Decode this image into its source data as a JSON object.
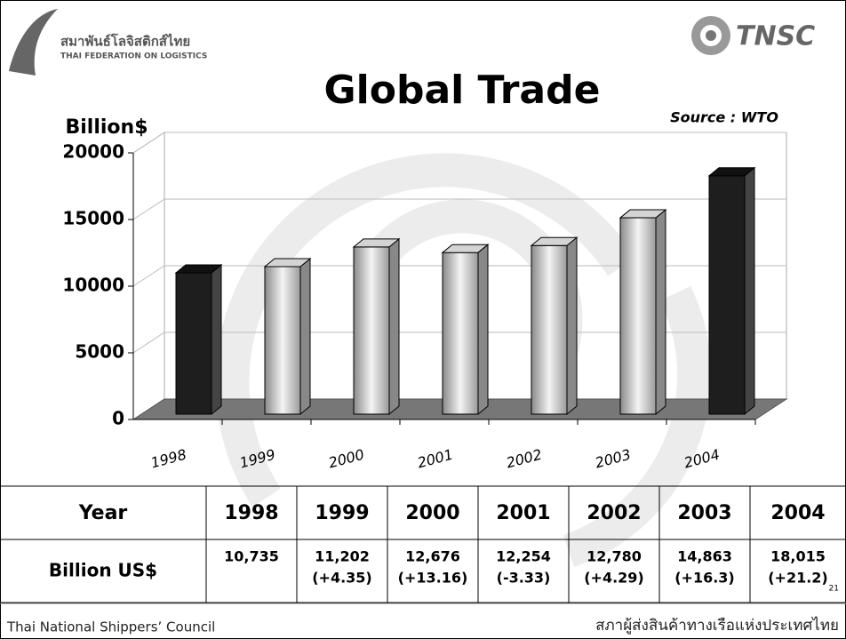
{
  "header": {
    "logo_thai": "สมาพันธ์โลจิสติกส์ไทย",
    "logo_english": "THAI FEDERATION ON LOGISTICS",
    "logo_right": "TNSC"
  },
  "chart_data": {
    "type": "bar",
    "title": "Global Trade",
    "y_label": "Billion$",
    "source": "Source : WTO",
    "categories": [
      "1998",
      "1999",
      "2000",
      "2001",
      "2002",
      "2003",
      "2004"
    ],
    "values": [
      10735,
      11202,
      12676,
      12254,
      12780,
      14863,
      18015
    ],
    "colors": [
      "#1e1e1e",
      "#d4d4d4",
      "#d4d4d4",
      "#d4d4d4",
      "#d4d4d4",
      "#d4d4d4",
      "#1e1e1e"
    ],
    "ylim": [
      0,
      20000
    ],
    "yticks": [
      0,
      5000,
      10000,
      15000,
      20000
    ],
    "grid": true
  },
  "table": {
    "header": [
      "Year",
      "1998",
      "1999",
      "2000",
      "2001",
      "2002",
      "2003",
      "2004"
    ],
    "rows": [
      [
        "Billion US$",
        "10,735",
        [
          "11,202",
          "(+4.35)"
        ],
        [
          "12,676",
          "(+13.16)"
        ],
        [
          "12,254",
          "(-3.33)"
        ],
        [
          "12,780",
          "(+4.29)"
        ],
        [
          "14,863",
          "(+16.3)"
        ],
        [
          "18,015",
          "(+21.2)"
        ]
      ]
    ]
  },
  "page_number": "21",
  "footer": {
    "left": "Thai National Shippers’ Council",
    "right": "สภาผู้ส่งสินค้าทางเรือแห่งประเทศไทย"
  }
}
